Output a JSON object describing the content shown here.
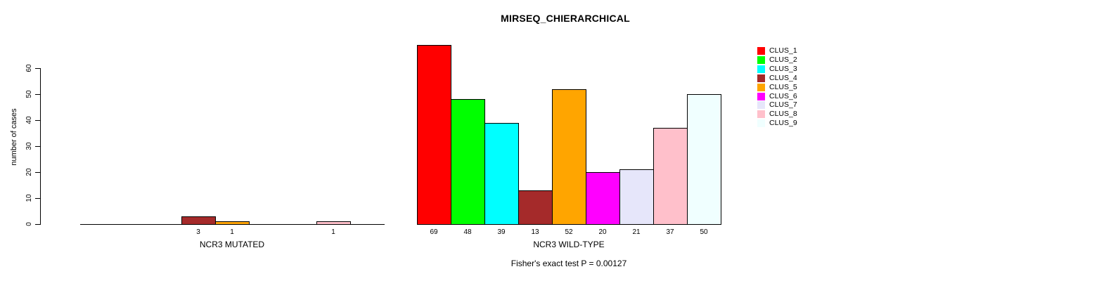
{
  "title": "MIRSEQ_CHIERARCHICAL",
  "y_axis": {
    "label": "number of cases",
    "ticks": [
      0,
      10,
      20,
      30,
      40,
      50,
      60
    ]
  },
  "footer": "Fisher's exact test P = 0.00127",
  "legend": {
    "entries": [
      {
        "label": "CLUS_1",
        "color": "#FF0000"
      },
      {
        "label": "CLUS_2",
        "color": "#00FF00"
      },
      {
        "label": "CLUS_3",
        "color": "#00FFFF"
      },
      {
        "label": "CLUS_4",
        "color": "#A52A2A"
      },
      {
        "label": "CLUS_5",
        "color": "#FFA500"
      },
      {
        "label": "CLUS_6",
        "color": "#FF00FF"
      },
      {
        "label": "CLUS_7",
        "color": "#E6E6FA"
      },
      {
        "label": "CLUS_8",
        "color": "#FFC0CB"
      },
      {
        "label": "CLUS_9",
        "color": "#F0FFFF"
      }
    ]
  },
  "chart_data": {
    "type": "bar",
    "title": "MIRSEQ_CHIERARCHICAL",
    "ylabel": "number of cases",
    "ylim": [
      0,
      60
    ],
    "y_ticks": [
      0,
      10,
      20,
      30,
      40,
      50,
      60
    ],
    "grid": false,
    "legend_position": "top-right",
    "categories": [
      "CLUS_1",
      "CLUS_2",
      "CLUS_3",
      "CLUS_4",
      "CLUS_5",
      "CLUS_6",
      "CLUS_7",
      "CLUS_8",
      "CLUS_9"
    ],
    "colors": [
      "#FF0000",
      "#00FF00",
      "#00FFFF",
      "#A52A2A",
      "#FFA500",
      "#FF00FF",
      "#E6E6FA",
      "#FFC0CB",
      "#F0FFFF"
    ],
    "series": [
      {
        "name": "NCR3 MUTATED",
        "values": [
          0,
          0,
          0,
          3,
          1,
          0,
          0,
          1,
          0
        ]
      },
      {
        "name": "NCR3 WILD-TYPE",
        "values": [
          69,
          48,
          39,
          13,
          52,
          20,
          21,
          37,
          50
        ]
      }
    ],
    "bar_value_labels": "shown under each non-zero bar",
    "annotation": "Fisher's exact test P = 0.00127"
  }
}
